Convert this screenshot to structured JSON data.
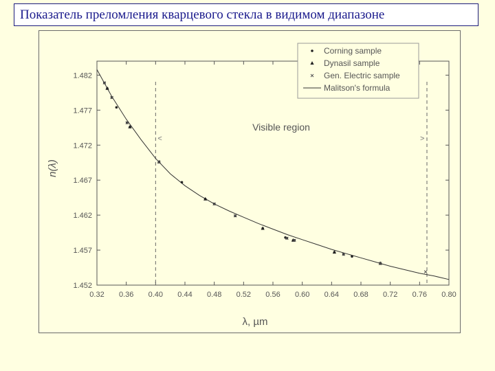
{
  "title": "Показатель преломления кварцевого стекла в видимом диапазоне",
  "colors": {
    "background": "#ffffe1",
    "title_text": "#1a1a8c",
    "ink": "#555555"
  },
  "chart_data": {
    "type": "line",
    "xlabel": "λ, µm",
    "ylabel": "n(λ)",
    "xlim": [
      0.32,
      0.8
    ],
    "ylim": [
      1.452,
      1.484
    ],
    "x_ticks": [
      "0.32",
      "0.36",
      "0.40",
      "0.44",
      "0.48",
      "0.52",
      "0.56",
      "0.60",
      "0.64",
      "0.68",
      "0.72",
      "0.76",
      "0.80"
    ],
    "y_ticks": [
      "1.452",
      "1.457",
      "1.462",
      "1.467",
      "1.472",
      "1.477",
      "1.482"
    ],
    "grid": false,
    "legend_position": "top-right",
    "annotation": "Visible region",
    "visible_region": [
      0.4,
      0.77
    ],
    "arrow_labels": [
      "<",
      ">"
    ],
    "series": [
      {
        "name": "Corning sample",
        "marker": "dot",
        "x": [
          0.3302,
          0.3341,
          0.3403,
          0.3466,
          0.3611,
          0.365,
          0.4047,
          0.4358,
          0.4678,
          0.48,
          0.5086,
          0.5461,
          0.577,
          0.5791,
          0.5876,
          0.5893,
          0.6438,
          0.6563,
          0.6678,
          0.7065
        ],
        "y": [
          1.4809,
          1.4801,
          1.4788,
          1.4774,
          1.4752,
          1.4746,
          1.4696,
          1.4667,
          1.4643,
          1.4636,
          1.4619,
          1.4601,
          1.4588,
          1.4587,
          1.4584,
          1.4584,
          1.4567,
          1.4564,
          1.4561,
          1.4551
        ]
      },
      {
        "name": "Dynasil sample",
        "marker": "triangle",
        "x": [
          0.3341,
          0.365,
          0.4047,
          0.4678,
          0.5461,
          0.5876,
          0.6438,
          0.7065
        ],
        "y": [
          1.4801,
          1.4746,
          1.4696,
          1.4643,
          1.4601,
          1.4584,
          1.4567,
          1.4551
        ]
      },
      {
        "name": "Gen. Electric sample",
        "marker": "x",
        "x": [
          0.3302,
          0.3403,
          0.3611,
          0.4047,
          0.48,
          0.5086,
          0.5791,
          0.5893,
          0.6563,
          0.7065,
          0.7682
        ],
        "y": [
          1.4809,
          1.4788,
          1.4752,
          1.4696,
          1.4636,
          1.4619,
          1.4587,
          1.4584,
          1.4564,
          1.4551,
          1.4539
        ]
      },
      {
        "name": "Malitson's formula",
        "marker": "line",
        "x": [
          0.32,
          0.34,
          0.36,
          0.38,
          0.4,
          0.42,
          0.44,
          0.46,
          0.48,
          0.5,
          0.52,
          0.54,
          0.56,
          0.58,
          0.6,
          0.62,
          0.64,
          0.66,
          0.68,
          0.7,
          0.72,
          0.74,
          0.76,
          0.78,
          0.8
        ],
        "y": [
          1.4828,
          1.479,
          1.4757,
          1.4728,
          1.4701,
          1.4679,
          1.4662,
          1.4648,
          1.4636,
          1.4626,
          1.4617,
          1.4608,
          1.46,
          1.4592,
          1.4585,
          1.4578,
          1.4571,
          1.4565,
          1.4559,
          1.4553,
          1.4547,
          1.4542,
          1.4537,
          1.4533,
          1.4528
        ]
      }
    ]
  }
}
